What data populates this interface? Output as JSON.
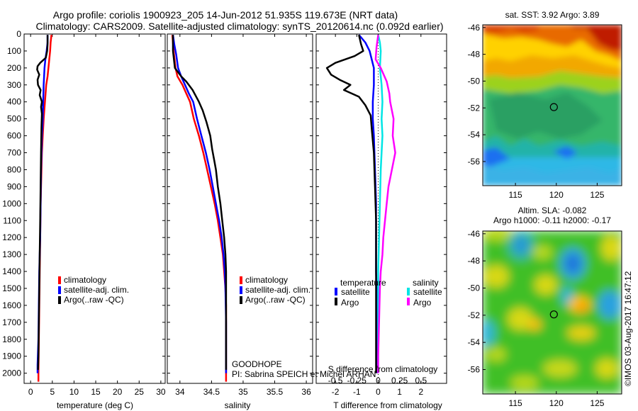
{
  "header": {
    "line1": "Argo profile: coriolis 1900923_205 14-Jun-2012 51.935S 119.673E (NRT data)",
    "line2": "Climatology: CARS2009. Satellite-adjusted climatology: synTS_20120614.nc (0.092d earlier)"
  },
  "colors": {
    "climatology": "#ff0000",
    "satellite": "#0000ff",
    "argo": "#000000",
    "s_satellite": "#00e5e5",
    "s_argo": "#ff00ff"
  },
  "chart_data": [
    {
      "type": "line",
      "name_key": "temperature",
      "xlabel": "temperature (deg C)",
      "xlim": [
        -1.5,
        31
      ],
      "xticks": [
        0,
        5,
        10,
        15,
        20,
        25,
        30
      ],
      "ylim": [
        2060,
        0
      ],
      "yticks": [
        0,
        100,
        200,
        300,
        400,
        500,
        600,
        700,
        800,
        900,
        1000,
        1100,
        1200,
        1300,
        1400,
        1500,
        1600,
        1700,
        1800,
        1900,
        2000
      ],
      "legend": [
        "climatology",
        "satellite-adj. clim.",
        "Argo(..raw -QC)"
      ],
      "series": [
        {
          "name": "climatology",
          "color": "#ff0000",
          "points": [
            [
              4.8,
              5
            ],
            [
              4.6,
              50
            ],
            [
              4.5,
              100
            ],
            [
              4.3,
              150
            ],
            [
              4.1,
              200
            ],
            [
              3.9,
              250
            ],
            [
              3.6,
              300
            ],
            [
              3.3,
              400
            ],
            [
              3.0,
              500
            ],
            [
              2.8,
              600
            ],
            [
              2.6,
              700
            ],
            [
              2.5,
              800
            ],
            [
              2.4,
              900
            ],
            [
              2.3,
              1000
            ],
            [
              2.2,
              1200
            ],
            [
              2.1,
              1400
            ],
            [
              2.0,
              1600
            ],
            [
              1.9,
              1800
            ],
            [
              1.8,
              2000
            ],
            [
              1.8,
              2050
            ]
          ]
        },
        {
          "name": "satellite-adj. clim.",
          "color": "#0000ff",
          "points": [
            [
              3.9,
              5
            ],
            [
              3.9,
              50
            ],
            [
              3.7,
              100
            ],
            [
              3.4,
              150
            ],
            [
              3.2,
              200
            ],
            [
              3.0,
              300
            ],
            [
              2.9,
              400
            ],
            [
              2.8,
              500
            ],
            [
              2.6,
              600
            ],
            [
              2.5,
              700
            ],
            [
              2.4,
              800
            ],
            [
              2.3,
              1000
            ],
            [
              2.2,
              1200
            ],
            [
              2.0,
              1400
            ],
            [
              1.9,
              1600
            ],
            [
              1.8,
              1800
            ],
            [
              1.6,
              1950
            ],
            [
              1.6,
              2000
            ]
          ]
        },
        {
          "name": "Argo(..raw -QC)",
          "color": "#000000",
          "points": [
            [
              3.9,
              5
            ],
            [
              3.9,
              60
            ],
            [
              3.8,
              100
            ],
            [
              3.5,
              140
            ],
            [
              2.2,
              170
            ],
            [
              1.6,
              190
            ],
            [
              1.5,
              210
            ],
            [
              2.0,
              240
            ],
            [
              1.6,
              270
            ],
            [
              1.7,
              300
            ],
            [
              2.3,
              330
            ],
            [
              2.1,
              360
            ],
            [
              2.6,
              400
            ],
            [
              2.4,
              430
            ],
            [
              2.6,
              470
            ],
            [
              2.5,
              550
            ],
            [
              2.4,
              700
            ],
            [
              2.3,
              900
            ],
            [
              2.2,
              1100
            ],
            [
              2.1,
              1300
            ],
            [
              2.0,
              1500
            ],
            [
              1.9,
              1700
            ],
            [
              1.8,
              1900
            ],
            [
              1.7,
              1980
            ]
          ]
        }
      ]
    },
    {
      "type": "line",
      "name_key": "salinity",
      "xlabel": "salinity",
      "xlim": [
        33.8,
        36.1
      ],
      "xticks": [
        34,
        34.5,
        35,
        35.5,
        36
      ],
      "xticklabels": [
        "34",
        "34.5",
        "35",
        "35.5",
        "36"
      ],
      "ylim": [
        2060,
        0
      ],
      "legend": [
        "climatology",
        "satellite-adj. clim.",
        "Argo(..raw -QC)"
      ],
      "annotation": [
        "GOODHOPE",
        "PI: Sabrina SPEICH et Michel ARHAN"
      ],
      "series": [
        {
          "name": "climatology",
          "color": "#ff0000",
          "points": [
            [
              33.88,
              5
            ],
            [
              33.89,
              50
            ],
            [
              33.9,
              100
            ],
            [
              33.93,
              200
            ],
            [
              33.96,
              250
            ],
            [
              34.04,
              300
            ],
            [
              34.1,
              350
            ],
            [
              34.16,
              400
            ],
            [
              34.22,
              500
            ],
            [
              34.3,
              600
            ],
            [
              34.37,
              700
            ],
            [
              34.43,
              800
            ],
            [
              34.49,
              900
            ],
            [
              34.55,
              1000
            ],
            [
              34.6,
              1100
            ],
            [
              34.64,
              1200
            ],
            [
              34.68,
              1300
            ],
            [
              34.7,
              1400
            ],
            [
              34.72,
              1500
            ],
            [
              34.73,
              1600
            ],
            [
              34.73,
              1800
            ],
            [
              34.73,
              2000
            ],
            [
              34.73,
              2050
            ]
          ]
        },
        {
          "name": "satellite-adj. clim.",
          "color": "#0000ff",
          "points": [
            [
              33.89,
              5
            ],
            [
              33.91,
              60
            ],
            [
              33.94,
              120
            ],
            [
              33.97,
              200
            ],
            [
              34.02,
              250
            ],
            [
              34.08,
              300
            ],
            [
              34.14,
              350
            ],
            [
              34.21,
              400
            ],
            [
              34.27,
              500
            ],
            [
              34.34,
              600
            ],
            [
              34.41,
              700
            ],
            [
              34.47,
              800
            ],
            [
              34.52,
              900
            ],
            [
              34.57,
              1000
            ],
            [
              34.62,
              1100
            ],
            [
              34.66,
              1200
            ],
            [
              34.69,
              1300
            ],
            [
              34.71,
              1400
            ],
            [
              34.72,
              1500
            ],
            [
              34.73,
              1700
            ],
            [
              34.73,
              2000
            ]
          ]
        },
        {
          "name": "Argo(..raw -QC)",
          "color": "#000000",
          "points": [
            [
              33.89,
              5
            ],
            [
              33.89,
              100
            ],
            [
              33.92,
              200
            ],
            [
              34.02,
              250
            ],
            [
              34.1,
              280
            ],
            [
              34.2,
              330
            ],
            [
              34.3,
              400
            ],
            [
              34.36,
              450
            ],
            [
              34.42,
              520
            ],
            [
              34.48,
              600
            ],
            [
              34.51,
              680
            ],
            [
              34.54,
              740
            ],
            [
              34.57,
              800
            ],
            [
              34.6,
              900
            ],
            [
              34.64,
              1000
            ],
            [
              34.67,
              1100
            ],
            [
              34.7,
              1200
            ],
            [
              34.72,
              1300
            ],
            [
              34.73,
              1400
            ],
            [
              34.73,
              1500
            ],
            [
              34.73,
              1700
            ],
            [
              34.73,
              1900
            ],
            [
              34.73,
              1980
            ]
          ]
        }
      ]
    },
    {
      "type": "line",
      "name_key": "difference",
      "xlabel": "T difference from climatology",
      "xlabel2": "S difference from climatology",
      "xlim": [
        -2.9,
        3.2
      ],
      "xticks": [
        -2,
        -1,
        0,
        1,
        2
      ],
      "s_ticks": [
        -0.5,
        -0.25,
        0,
        0.25,
        0.5
      ],
      "s_ticklabels": [
        "-0.5",
        "-0.25",
        "0",
        "0.25",
        "0.5"
      ],
      "s_scale": 4,
      "ylim": [
        2060,
        0
      ],
      "legend_temperature": [
        "temperature",
        "satellite",
        "Argo"
      ],
      "legend_salinity": [
        "salinity",
        "satellite",
        "Argo"
      ],
      "series": [
        {
          "name": "temperature satellite",
          "color": "#0000ff",
          "points": [
            [
              -0.9,
              5
            ],
            [
              -0.6,
              50
            ],
            [
              -0.4,
              100
            ],
            [
              -0.2,
              200
            ],
            [
              -0.2,
              300
            ],
            [
              -0.25,
              400
            ],
            [
              -0.25,
              500
            ],
            [
              -0.2,
              600
            ],
            [
              -0.15,
              800
            ],
            [
              -0.1,
              1000
            ],
            [
              -0.1,
              1200
            ],
            [
              -0.1,
              1400
            ],
            [
              -0.05,
              1600
            ],
            [
              -0.05,
              1800
            ],
            [
              -0.05,
              2000
            ]
          ]
        },
        {
          "name": "temperature Argo",
          "color": "#000000",
          "points": [
            [
              -0.9,
              5
            ],
            [
              -0.8,
              60
            ],
            [
              -0.7,
              100
            ],
            [
              -1.1,
              130
            ],
            [
              -2.0,
              170
            ],
            [
              -2.4,
              200
            ],
            [
              -2.2,
              240
            ],
            [
              -1.8,
              270
            ],
            [
              -1.3,
              300
            ],
            [
              -1.6,
              330
            ],
            [
              -0.9,
              370
            ],
            [
              -0.6,
              420
            ],
            [
              -0.35,
              480
            ],
            [
              -0.3,
              560
            ],
            [
              -0.2,
              700
            ],
            [
              -0.15,
              900
            ],
            [
              -0.1,
              1100
            ],
            [
              -0.1,
              1300
            ],
            [
              -0.1,
              1500
            ],
            [
              -0.1,
              1700
            ],
            [
              -0.1,
              1900
            ],
            [
              -0.1,
              2000
            ]
          ]
        },
        {
          "name": "salinity satellite",
          "color": "#00e5e5",
          "scale_s": true,
          "points": [
            [
              0.0,
              5
            ],
            [
              0.02,
              50
            ],
            [
              0.03,
              100
            ],
            [
              0.02,
              200
            ],
            [
              0.04,
              300
            ],
            [
              0.05,
              400
            ],
            [
              0.04,
              500
            ],
            [
              0.05,
              600
            ],
            [
              0.04,
              700
            ],
            [
              0.03,
              800
            ],
            [
              0.02,
              1000
            ],
            [
              0.01,
              1200
            ],
            [
              0.0,
              1400
            ],
            [
              0.0,
              1600
            ],
            [
              0.0,
              1800
            ],
            [
              0.0,
              2000
            ]
          ]
        },
        {
          "name": "salinity Argo",
          "color": "#ff00ff",
          "scale_s": true,
          "points": [
            [
              0.0,
              5
            ],
            [
              -0.02,
              80
            ],
            [
              -0.03,
              150
            ],
            [
              0.03,
              200
            ],
            [
              0.1,
              280
            ],
            [
              0.13,
              350
            ],
            [
              0.14,
              400
            ],
            [
              0.16,
              450
            ],
            [
              0.18,
              500
            ],
            [
              0.17,
              600
            ],
            [
              0.2,
              700
            ],
            [
              0.16,
              800
            ],
            [
              0.12,
              900
            ],
            [
              0.1,
              1000
            ],
            [
              0.08,
              1100
            ],
            [
              0.06,
              1200
            ],
            [
              0.05,
              1300
            ],
            [
              0.03,
              1400
            ],
            [
              0.02,
              1500
            ],
            [
              0.01,
              1700
            ],
            [
              0.0,
              1900
            ],
            [
              0.0,
              2000
            ]
          ]
        }
      ]
    }
  ],
  "maps": [
    {
      "title": "sat. SST: 3.92 Argo: 3.89",
      "xticks": [
        "115",
        "120",
        "125"
      ],
      "yticks": [
        "-46",
        "-48",
        "-50",
        "-52",
        "-54",
        "-56"
      ],
      "type": "heatmap",
      "xlim": [
        111,
        128
      ],
      "ylim": [
        -57.8,
        -45.8
      ],
      "marker": [
        119.7,
        -51.94
      ]
    },
    {
      "title_line1": "Altim. SLA: -0.082",
      "title_line2": "Argo h1000: -0.11 h2000: -0.17",
      "xticks": [
        "115",
        "120",
        "125"
      ],
      "yticks": [
        "-46",
        "-48",
        "-50",
        "-52",
        "-54",
        "-56"
      ],
      "type": "heatmap",
      "xlim": [
        111,
        128
      ],
      "ylim": [
        -57.8,
        -45.8
      ],
      "marker": [
        119.7,
        -51.94
      ]
    }
  ],
  "footer": {
    "stamp": "©IMOS 03-Aug-2017 16:47:12"
  }
}
